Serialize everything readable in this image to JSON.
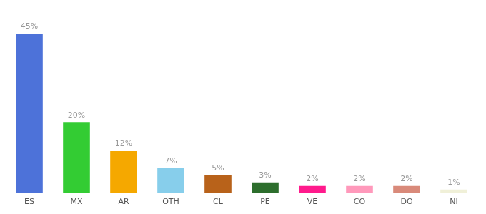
{
  "chart_data": {
    "type": "bar",
    "categories": [
      "ES",
      "MX",
      "AR",
      "OTH",
      "CL",
      "PE",
      "VE",
      "CO",
      "DO",
      "NI"
    ],
    "values": [
      45,
      20,
      12,
      7,
      5,
      3,
      2,
      2,
      2,
      1
    ],
    "value_labels": [
      "45%",
      "20%",
      "12%",
      "7%",
      "5%",
      "3%",
      "2%",
      "2%",
      "2%",
      "1%"
    ],
    "colors": [
      "#4d72d9",
      "#33cc33",
      "#f5a800",
      "#87ceeb",
      "#b8621a",
      "#2d6e2d",
      "#ff1a8c",
      "#ff99bb",
      "#d98a7a",
      "#f0f0d8"
    ],
    "ylim": [
      0,
      50
    ],
    "grid": false,
    "data_labels": true,
    "tick_labels": "x"
  }
}
